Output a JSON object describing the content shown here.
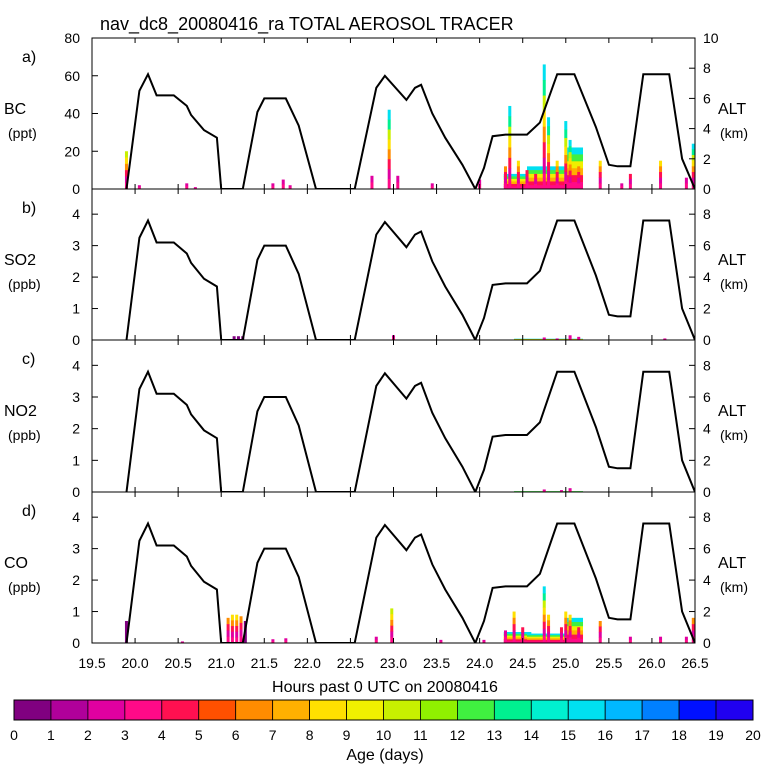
{
  "title": "nav_dc8_20080416_ra TOTAL AEROSOL TRACER",
  "xlabel": "Hours past 0 UTC on 20080416",
  "x_ticks": [
    "19.5",
    "20.0",
    "20.5",
    "21.0",
    "21.5",
    "22.0",
    "22.5",
    "23.0",
    "23.5",
    "24.0",
    "24.5",
    "25.0",
    "25.5",
    "26.0",
    "26.5"
  ],
  "x_range": [
    19.5,
    26.5
  ],
  "colorbar": {
    "label": "Age (days)",
    "ticks": [
      "0",
      "1",
      "2",
      "3",
      "4",
      "5",
      "6",
      "7",
      "8",
      "9",
      "10",
      "11",
      "12",
      "13",
      "14",
      "15",
      "16",
      "17",
      "18",
      "19",
      "20"
    ],
    "colors": [
      "#800080",
      "#b0009a",
      "#e000a0",
      "#ff0a88",
      "#ff1050",
      "#ff5000",
      "#ff8c00",
      "#ffb000",
      "#ffe000",
      "#f0f000",
      "#c8f000",
      "#90f000",
      "#40f040",
      "#00f090",
      "#00f0d0",
      "#00e0f0",
      "#00b8ff",
      "#0080ff",
      "#0010ff",
      "#2000f0"
    ]
  },
  "chart_data": [
    {
      "type": "area",
      "letter": "a)",
      "species": "BC",
      "unit": "(ppt)",
      "y_ticks": [
        "0",
        "20",
        "40",
        "60",
        "80"
      ],
      "ylim": [
        0,
        80
      ],
      "alt_label": "ALT",
      "alt_unit": "(km)",
      "alt_ticks": [
        "0",
        "2",
        "4",
        "6",
        "8",
        "10"
      ],
      "alt_lim": [
        0,
        10
      ],
      "spikes": [
        [
          19.9,
          20
        ],
        [
          20.05,
          2
        ],
        [
          20.6,
          3
        ],
        [
          20.7,
          1
        ],
        [
          21.6,
          3
        ],
        [
          21.72,
          5
        ],
        [
          21.8,
          2
        ],
        [
          22.75,
          7
        ],
        [
          22.95,
          42
        ],
        [
          23.05,
          7
        ],
        [
          23.45,
          3
        ],
        [
          24.0,
          5
        ],
        [
          24.3,
          12
        ],
        [
          24.35,
          44
        ],
        [
          24.45,
          15
        ],
        [
          24.55,
          10
        ],
        [
          24.65,
          8
        ],
        [
          24.75,
          66
        ],
        [
          24.8,
          38
        ],
        [
          24.9,
          15
        ],
        [
          25.0,
          36
        ],
        [
          25.05,
          26
        ],
        [
          25.15,
          12
        ],
        [
          25.4,
          15
        ],
        [
          25.65,
          3
        ],
        [
          25.75,
          8
        ],
        [
          26.1,
          15
        ],
        [
          26.4,
          6
        ],
        [
          26.48,
          24
        ]
      ],
      "fill_regions": [
        [
          24.28,
          24.6,
          8
        ],
        [
          24.55,
          25.1,
          12
        ],
        [
          25.0,
          25.2,
          22
        ]
      ]
    },
    {
      "type": "area",
      "letter": "b)",
      "species": "SO2",
      "unit": "(ppb)",
      "y_ticks": [
        "0",
        "1",
        "2",
        "3",
        "4"
      ],
      "ylim": [
        0,
        4.8
      ],
      "alt_label": "ALT",
      "alt_unit": "(km)",
      "alt_ticks": [
        "0",
        "2",
        "4",
        "6",
        "8"
      ],
      "alt_lim": [
        0,
        9.6
      ],
      "spikes": [
        [
          21.15,
          0.12
        ],
        [
          21.2,
          0.12
        ],
        [
          21.25,
          0.12
        ],
        [
          23.0,
          0.15
        ],
        [
          24.75,
          0.08
        ],
        [
          24.9,
          0.05
        ],
        [
          25.05,
          0.15
        ],
        [
          25.15,
          0.1
        ],
        [
          26.15,
          0.05
        ]
      ],
      "fill_regions": [
        [
          24.4,
          25.2,
          0.04
        ]
      ]
    },
    {
      "type": "area",
      "letter": "c)",
      "species": "NO2",
      "unit": "(ppb)",
      "y_ticks": [
        "0",
        "1",
        "2",
        "3",
        "4"
      ],
      "ylim": [
        0,
        4.8
      ],
      "alt_label": "ALT",
      "alt_unit": "(km)",
      "alt_ticks": [
        "0",
        "2",
        "4",
        "6",
        "8"
      ],
      "alt_lim": [
        0,
        9.6
      ],
      "spikes": [
        [
          24.75,
          0.08
        ],
        [
          24.95,
          0.06
        ],
        [
          25.05,
          0.12
        ]
      ],
      "fill_regions": [
        [
          24.4,
          25.2,
          0.03
        ]
      ]
    },
    {
      "type": "area",
      "letter": "d)",
      "species": "CO",
      "unit": "(ppb)",
      "y_ticks": [
        "0",
        "1",
        "2",
        "3",
        "4"
      ],
      "ylim": [
        0,
        4.8
      ],
      "alt_label": "ALT",
      "alt_unit": "(km)",
      "alt_ticks": [
        "0",
        "2",
        "4",
        "6",
        "8"
      ],
      "alt_lim": [
        0,
        9.6
      ],
      "spikes": [
        [
          19.9,
          0.7
        ],
        [
          20.55,
          0.05
        ],
        [
          21.08,
          0.8
        ],
        [
          21.13,
          0.9
        ],
        [
          21.18,
          0.9
        ],
        [
          21.23,
          0.85
        ],
        [
          21.28,
          0.7
        ],
        [
          21.6,
          0.12
        ],
        [
          21.75,
          0.15
        ],
        [
          22.8,
          0.2
        ],
        [
          22.98,
          1.1
        ],
        [
          23.55,
          0.1
        ],
        [
          24.05,
          0.1
        ],
        [
          24.3,
          0.4
        ],
        [
          24.4,
          1.0
        ],
        [
          24.5,
          0.5
        ],
        [
          24.75,
          1.8
        ],
        [
          24.8,
          0.9
        ],
        [
          24.95,
          0.5
        ],
        [
          25.0,
          1.0
        ],
        [
          25.05,
          0.9
        ],
        [
          25.15,
          0.5
        ],
        [
          25.4,
          0.7
        ],
        [
          25.75,
          0.2
        ],
        [
          26.1,
          0.2
        ],
        [
          26.4,
          0.2
        ],
        [
          26.48,
          0.8
        ]
      ],
      "fill_regions": [
        [
          24.28,
          24.6,
          0.35
        ],
        [
          24.55,
          25.1,
          0.3
        ],
        [
          25.0,
          25.2,
          0.8
        ]
      ]
    }
  ],
  "altitude_profile": {
    "x": [
      19.9,
      20.05,
      20.15,
      20.25,
      20.45,
      20.6,
      20.65,
      20.8,
      20.95,
      21.0,
      21.1,
      21.25,
      21.42,
      21.5,
      21.75,
      21.9,
      22.1,
      22.3,
      22.55,
      22.8,
      22.9,
      23.15,
      23.25,
      23.32,
      23.45,
      23.6,
      23.8,
      23.95,
      24.05,
      24.15,
      24.3,
      24.55,
      24.7,
      24.9,
      25.1,
      25.35,
      25.5,
      25.6,
      25.75,
      25.9,
      26.2,
      26.35,
      26.5
    ],
    "y": [
      0.0,
      6.5,
      7.6,
      6.2,
      6.2,
      5.5,
      4.9,
      3.9,
      3.4,
      0.0,
      0.0,
      0.0,
      5.1,
      6.0,
      6.0,
      4.2,
      0.0,
      0.0,
      0.0,
      6.7,
      7.5,
      5.9,
      6.7,
      6.9,
      5.0,
      3.4,
      1.6,
      0.0,
      1.4,
      3.5,
      3.6,
      3.6,
      4.4,
      7.6,
      7.6,
      4.1,
      1.6,
      1.5,
      1.5,
      7.6,
      7.6,
      2.0,
      0.0
    ]
  }
}
